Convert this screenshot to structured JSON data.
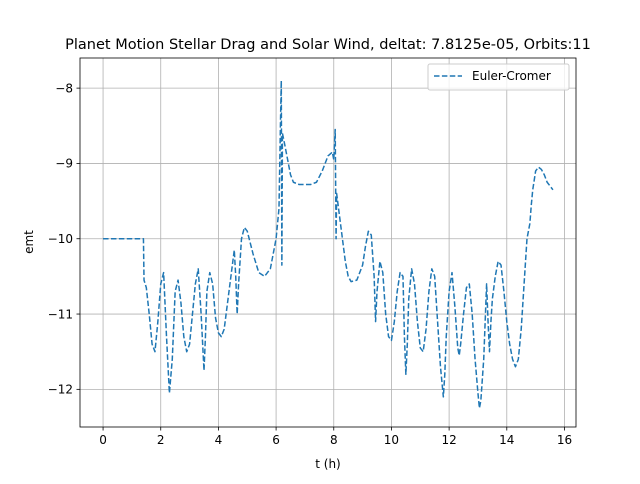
{
  "chart_data": {
    "type": "line",
    "title": "Planet Motion Stellar Drag and Solar Wind, deltat: 7.8125e-05, Orbits:11",
    "xlabel": "t (h)",
    "ylabel": "emt",
    "xlim": [
      -0.8,
      16.4
    ],
    "ylim": [
      -12.5,
      -7.6
    ],
    "x_ticks": [
      0,
      2,
      4,
      6,
      8,
      10,
      12,
      14,
      16
    ],
    "x_tick_labels": [
      "0",
      "2",
      "4",
      "6",
      "8",
      "10",
      "12",
      "14",
      "16"
    ],
    "y_ticks": [
      -8,
      -9,
      -10,
      -11,
      -12
    ],
    "y_tick_labels": [
      "−8",
      "−9",
      "−10",
      "−11",
      "−12"
    ],
    "grid": true,
    "legend_position": "top-right",
    "series": [
      {
        "name": "Euler-Cromer",
        "color": "#1f77b4",
        "style": "dashed",
        "points": [
          [
            0.0,
            -10.0
          ],
          [
            1.4,
            -10.0
          ],
          [
            1.42,
            -10.55
          ],
          [
            1.5,
            -10.65
          ],
          [
            1.6,
            -11.0
          ],
          [
            1.7,
            -11.4
          ],
          [
            1.8,
            -11.5
          ],
          [
            1.9,
            -11.1
          ],
          [
            2.0,
            -10.6
          ],
          [
            2.1,
            -10.45
          ],
          [
            2.2,
            -11.3
          ],
          [
            2.3,
            -12.05
          ],
          [
            2.4,
            -11.6
          ],
          [
            2.5,
            -10.7
          ],
          [
            2.6,
            -10.55
          ],
          [
            2.7,
            -10.85
          ],
          [
            2.8,
            -11.3
          ],
          [
            2.9,
            -11.5
          ],
          [
            3.0,
            -11.4
          ],
          [
            3.1,
            -11.0
          ],
          [
            3.2,
            -10.6
          ],
          [
            3.3,
            -10.4
          ],
          [
            3.4,
            -11.0
          ],
          [
            3.5,
            -11.75
          ],
          [
            3.55,
            -11.3
          ],
          [
            3.6,
            -10.7
          ],
          [
            3.7,
            -10.45
          ],
          [
            3.8,
            -10.6
          ],
          [
            3.9,
            -11.05
          ],
          [
            4.0,
            -11.25
          ],
          [
            4.1,
            -11.3
          ],
          [
            4.2,
            -11.2
          ],
          [
            4.3,
            -10.9
          ],
          [
            4.4,
            -10.6
          ],
          [
            4.5,
            -10.3
          ],
          [
            4.55,
            -10.15
          ],
          [
            4.6,
            -10.5
          ],
          [
            4.65,
            -11.0
          ],
          [
            4.7,
            -10.6
          ],
          [
            4.8,
            -10.0
          ],
          [
            4.9,
            -9.85
          ],
          [
            5.0,
            -9.9
          ],
          [
            5.2,
            -10.2
          ],
          [
            5.4,
            -10.45
          ],
          [
            5.6,
            -10.5
          ],
          [
            5.8,
            -10.4
          ],
          [
            6.0,
            -10.0
          ],
          [
            6.1,
            -9.6
          ],
          [
            6.15,
            -8.5
          ],
          [
            6.18,
            -7.9
          ],
          [
            6.2,
            -10.35
          ],
          [
            6.22,
            -8.6
          ],
          [
            6.3,
            -8.75
          ],
          [
            6.4,
            -8.95
          ],
          [
            6.5,
            -9.15
          ],
          [
            6.6,
            -9.25
          ],
          [
            6.8,
            -9.28
          ],
          [
            7.0,
            -9.28
          ],
          [
            7.2,
            -9.28
          ],
          [
            7.4,
            -9.25
          ],
          [
            7.6,
            -9.1
          ],
          [
            7.8,
            -8.9
          ],
          [
            7.95,
            -8.85
          ],
          [
            8.0,
            -8.95
          ],
          [
            8.05,
            -8.55
          ],
          [
            8.08,
            -10.0
          ],
          [
            8.1,
            -9.4
          ],
          [
            8.2,
            -9.7
          ],
          [
            8.3,
            -10.0
          ],
          [
            8.4,
            -10.3
          ],
          [
            8.5,
            -10.5
          ],
          [
            8.6,
            -10.57
          ],
          [
            8.8,
            -10.55
          ],
          [
            9.0,
            -10.35
          ],
          [
            9.1,
            -10.1
          ],
          [
            9.2,
            -9.9
          ],
          [
            9.3,
            -9.95
          ],
          [
            9.4,
            -10.5
          ],
          [
            9.45,
            -11.1
          ],
          [
            9.5,
            -10.7
          ],
          [
            9.6,
            -10.3
          ],
          [
            9.7,
            -10.45
          ],
          [
            9.8,
            -11.0
          ],
          [
            9.9,
            -11.3
          ],
          [
            10.0,
            -11.35
          ],
          [
            10.1,
            -11.1
          ],
          [
            10.2,
            -10.7
          ],
          [
            10.3,
            -10.45
          ],
          [
            10.4,
            -10.5
          ],
          [
            10.45,
            -11.3
          ],
          [
            10.5,
            -11.8
          ],
          [
            10.55,
            -11.4
          ],
          [
            10.6,
            -10.8
          ],
          [
            10.7,
            -10.4
          ],
          [
            10.8,
            -10.6
          ],
          [
            10.9,
            -11.1
          ],
          [
            11.0,
            -11.45
          ],
          [
            11.1,
            -11.5
          ],
          [
            11.2,
            -11.2
          ],
          [
            11.3,
            -10.7
          ],
          [
            11.4,
            -10.4
          ],
          [
            11.5,
            -10.5
          ],
          [
            11.6,
            -11.1
          ],
          [
            11.7,
            -11.7
          ],
          [
            11.8,
            -12.1
          ],
          [
            11.85,
            -11.8
          ],
          [
            11.9,
            -11.3
          ],
          [
            12.0,
            -10.7
          ],
          [
            12.1,
            -10.45
          ],
          [
            12.2,
            -10.9
          ],
          [
            12.3,
            -11.45
          ],
          [
            12.35,
            -11.55
          ],
          [
            12.4,
            -11.4
          ],
          [
            12.5,
            -11.0
          ],
          [
            12.6,
            -10.65
          ],
          [
            12.7,
            -10.6
          ],
          [
            12.8,
            -11.0
          ],
          [
            12.9,
            -11.6
          ],
          [
            13.0,
            -12.05
          ],
          [
            13.05,
            -12.25
          ],
          [
            13.1,
            -12.15
          ],
          [
            13.2,
            -11.6
          ],
          [
            13.3,
            -10.6
          ],
          [
            13.35,
            -11.1
          ],
          [
            13.4,
            -11.5
          ],
          [
            13.45,
            -11.1
          ],
          [
            13.5,
            -10.8
          ],
          [
            13.6,
            -10.5
          ],
          [
            13.7,
            -10.3
          ],
          [
            13.8,
            -10.35
          ],
          [
            13.9,
            -10.7
          ],
          [
            14.0,
            -11.1
          ],
          [
            14.1,
            -11.4
          ],
          [
            14.2,
            -11.6
          ],
          [
            14.3,
            -11.7
          ],
          [
            14.4,
            -11.6
          ],
          [
            14.5,
            -11.2
          ],
          [
            14.6,
            -10.6
          ],
          [
            14.7,
            -10.0
          ],
          [
            14.8,
            -9.8
          ],
          [
            14.85,
            -9.55
          ],
          [
            14.9,
            -9.35
          ],
          [
            15.0,
            -9.1
          ],
          [
            15.1,
            -9.05
          ],
          [
            15.2,
            -9.08
          ],
          [
            15.3,
            -9.15
          ],
          [
            15.4,
            -9.25
          ],
          [
            15.5,
            -9.3
          ],
          [
            15.6,
            -9.35
          ]
        ]
      }
    ]
  }
}
